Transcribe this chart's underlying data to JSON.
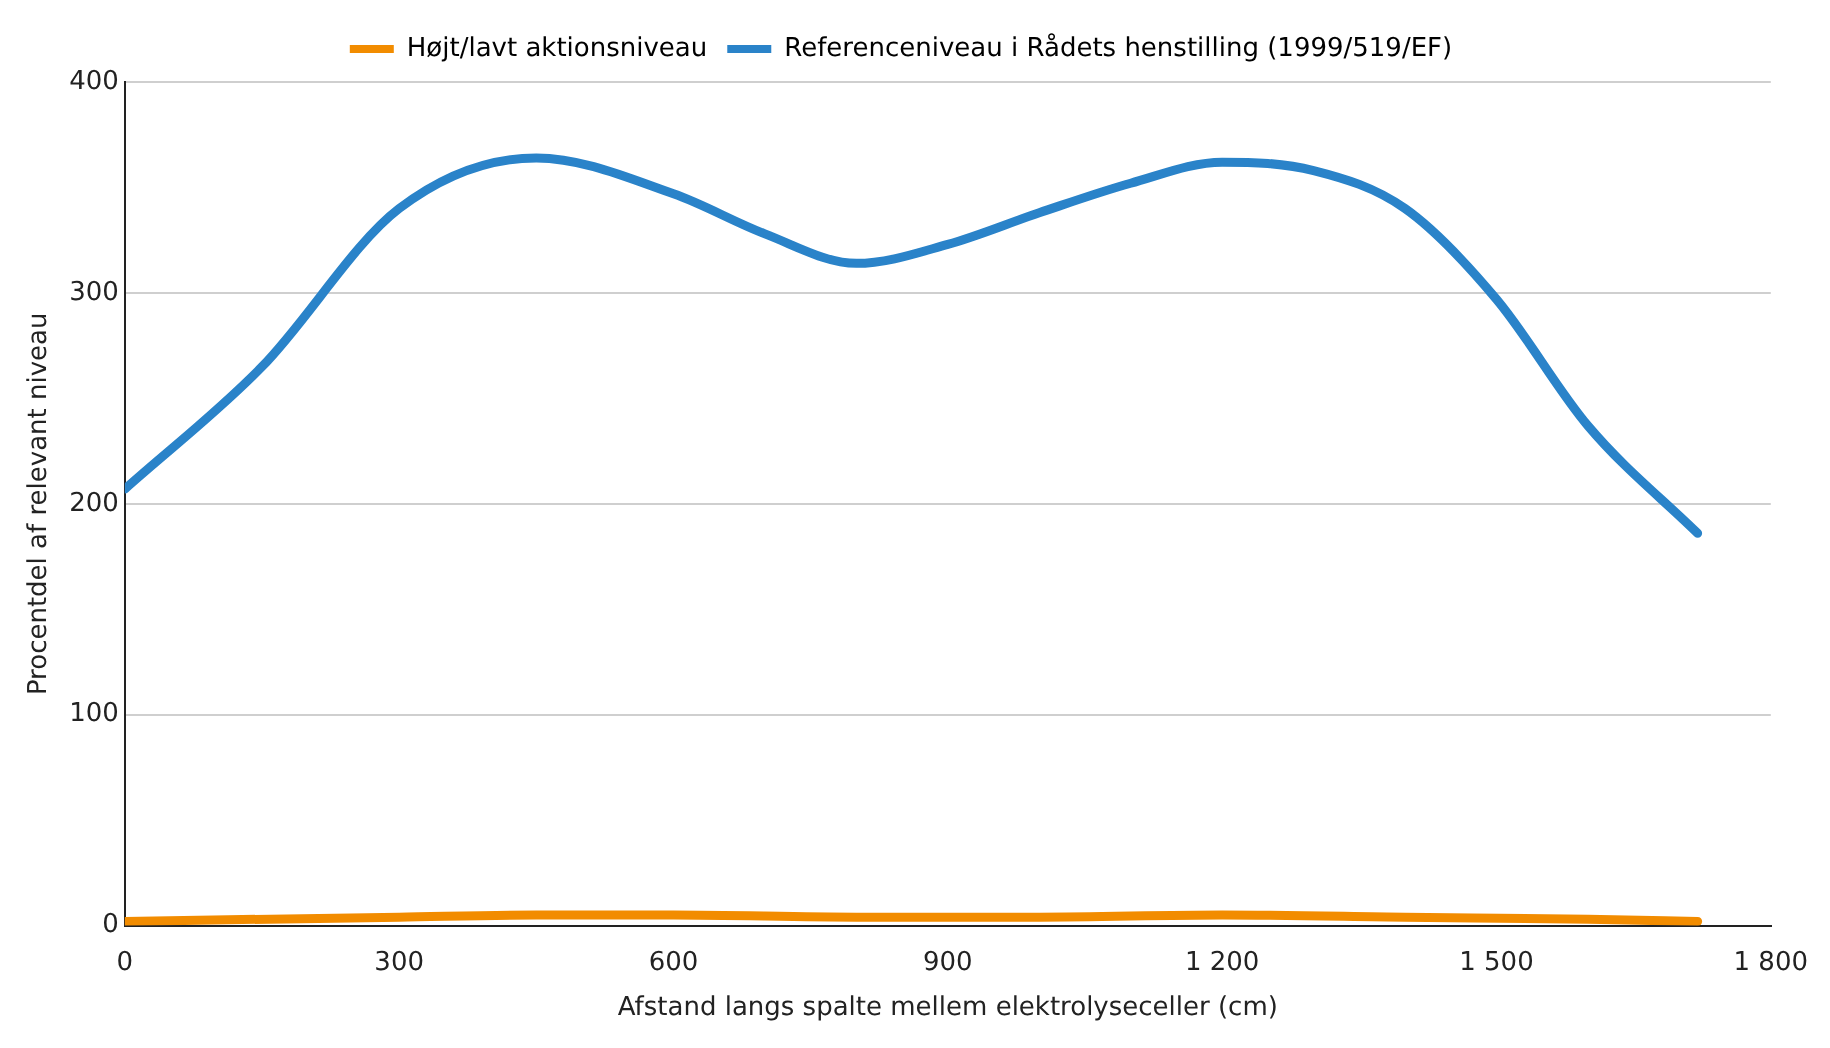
{
  "chart_data": {
    "type": "line",
    "xlabel": "Afstand langs spalte mellem elektrolyseceller (cm)",
    "ylabel": "Procentdel af relevant niveau",
    "xlim": [
      0,
      1800
    ],
    "xticks": [
      0,
      300,
      600,
      900,
      {
        "value": 1200,
        "label": "1 200"
      },
      {
        "value": 1500,
        "label": "1 500"
      },
      {
        "value": 1800,
        "label": "1 800"
      }
    ],
    "ylim": [
      0,
      400
    ],
    "yticks": [
      0,
      100,
      200,
      300,
      400
    ],
    "grid": "y",
    "legend": "top",
    "marker": "none",
    "line_style": "solid",
    "series": [
      {
        "name": "Højt/lavt aktionsniveau",
        "color": "#f28c00",
        "x": [
          0,
          300,
          450,
          600,
          800,
          1000,
          1200,
          1400,
          1600,
          1720
        ],
        "values": [
          2,
          4,
          5,
          5,
          4,
          4,
          5,
          4,
          3,
          2
        ]
      },
      {
        "name": "Referenceniveau i Rådets henstilling (1999/519/EF)",
        "color": "#2a83c9",
        "x": [
          0,
          150,
          300,
          450,
          600,
          700,
          800,
          900,
          1000,
          1100,
          1200,
          1300,
          1400,
          1500,
          1600,
          1720
        ],
        "values": [
          207,
          265,
          340,
          364,
          347,
          328,
          314,
          323,
          338,
          352,
          362,
          358,
          340,
          297,
          237,
          186
        ]
      }
    ]
  }
}
